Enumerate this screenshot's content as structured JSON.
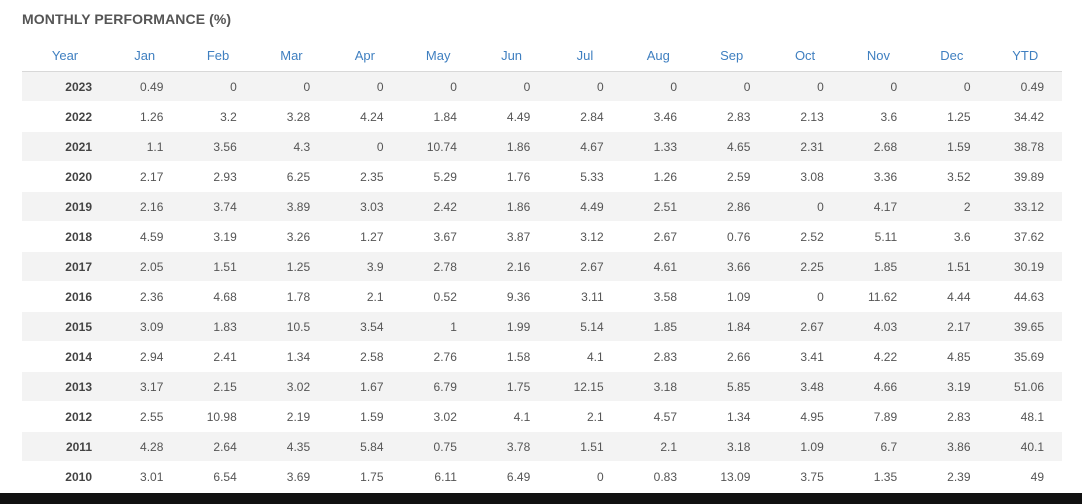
{
  "title": "MONTHLY PERFORMANCE (%)",
  "table": {
    "header": [
      "Year",
      "Jan",
      "Feb",
      "Mar",
      "Apr",
      "May",
      "Jun",
      "Jul",
      "Aug",
      "Sep",
      "Oct",
      "Nov",
      "Dec",
      "YTD"
    ],
    "rows": [
      [
        "2023",
        "0.49",
        "0",
        "0",
        "0",
        "0",
        "0",
        "0",
        "0",
        "0",
        "0",
        "0",
        "0",
        "0.49"
      ],
      [
        "2022",
        "1.26",
        "3.2",
        "3.28",
        "4.24",
        "1.84",
        "4.49",
        "2.84",
        "3.46",
        "2.83",
        "2.13",
        "3.6",
        "1.25",
        "34.42"
      ],
      [
        "2021",
        "1.1",
        "3.56",
        "4.3",
        "0",
        "10.74",
        "1.86",
        "4.67",
        "1.33",
        "4.65",
        "2.31",
        "2.68",
        "1.59",
        "38.78"
      ],
      [
        "2020",
        "2.17",
        "2.93",
        "6.25",
        "2.35",
        "5.29",
        "1.76",
        "5.33",
        "1.26",
        "2.59",
        "3.08",
        "3.36",
        "3.52",
        "39.89"
      ],
      [
        "2019",
        "2.16",
        "3.74",
        "3.89",
        "3.03",
        "2.42",
        "1.86",
        "4.49",
        "2.51",
        "2.86",
        "0",
        "4.17",
        "2",
        "33.12"
      ],
      [
        "2018",
        "4.59",
        "3.19",
        "3.26",
        "1.27",
        "3.67",
        "3.87",
        "3.12",
        "2.67",
        "0.76",
        "2.52",
        "5.11",
        "3.6",
        "37.62"
      ],
      [
        "2017",
        "2.05",
        "1.51",
        "1.25",
        "3.9",
        "2.78",
        "2.16",
        "2.67",
        "4.61",
        "3.66",
        "2.25",
        "1.85",
        "1.51",
        "30.19"
      ],
      [
        "2016",
        "2.36",
        "4.68",
        "1.78",
        "2.1",
        "0.52",
        "9.36",
        "3.11",
        "3.58",
        "1.09",
        "0",
        "11.62",
        "4.44",
        "44.63"
      ],
      [
        "2015",
        "3.09",
        "1.83",
        "10.5",
        "3.54",
        "1",
        "1.99",
        "5.14",
        "1.85",
        "1.84",
        "2.67",
        "4.03",
        "2.17",
        "39.65"
      ],
      [
        "2014",
        "2.94",
        "2.41",
        "1.34",
        "2.58",
        "2.76",
        "1.58",
        "4.1",
        "2.83",
        "2.66",
        "3.41",
        "4.22",
        "4.85",
        "35.69"
      ],
      [
        "2013",
        "3.17",
        "2.15",
        "3.02",
        "1.67",
        "6.79",
        "1.75",
        "12.15",
        "3.18",
        "5.85",
        "3.48",
        "4.66",
        "3.19",
        "51.06"
      ],
      [
        "2012",
        "2.55",
        "10.98",
        "2.19",
        "1.59",
        "3.02",
        "4.1",
        "2.1",
        "4.57",
        "1.34",
        "4.95",
        "7.89",
        "2.83",
        "48.1"
      ],
      [
        "2011",
        "4.28",
        "2.64",
        "4.35",
        "5.84",
        "0.75",
        "3.78",
        "1.51",
        "2.1",
        "3.18",
        "1.09",
        "6.7",
        "3.86",
        "40.1"
      ],
      [
        "2010",
        "3.01",
        "6.54",
        "3.69",
        "1.75",
        "6.11",
        "6.49",
        "0",
        "0.83",
        "13.09",
        "3.75",
        "1.35",
        "2.39",
        "49"
      ]
    ]
  }
}
